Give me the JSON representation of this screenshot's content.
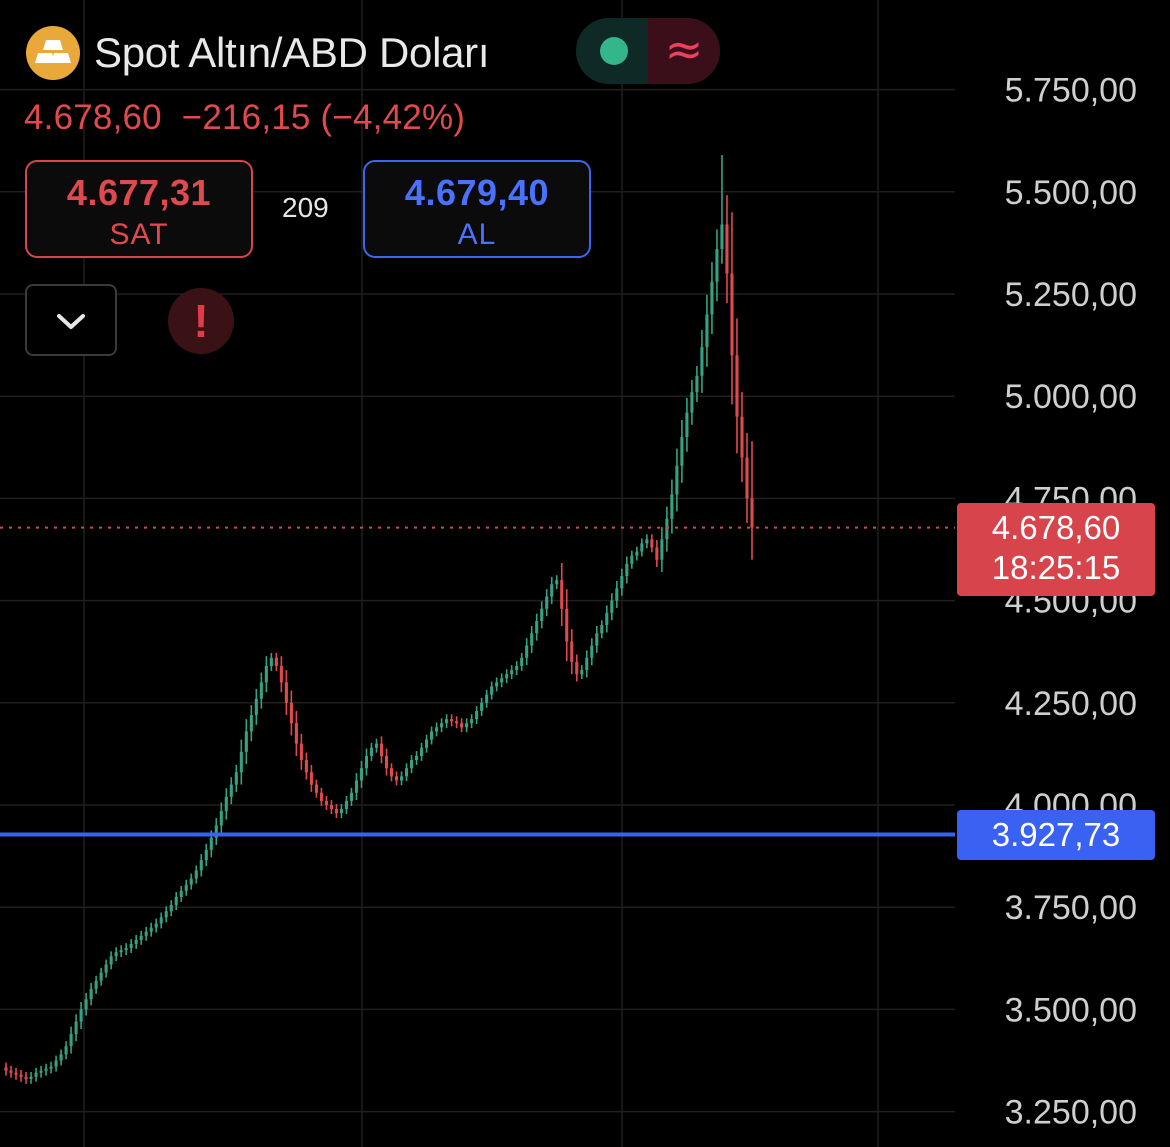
{
  "header": {
    "title": "Spot Altın/ABD Doları",
    "logo_icon": "gold-bars-icon",
    "toggle": {
      "left_icon": "dot-icon",
      "right_icon": "approx-icon",
      "right_glyph": "≈"
    }
  },
  "quote": {
    "last": "4.678,60",
    "change": "−216,15",
    "change_pct": "(−4,42%)"
  },
  "sell": {
    "price": "4.677,31",
    "label": "SAT"
  },
  "spread": "209",
  "buy": {
    "price": "4.679,40",
    "label": "AL"
  },
  "controls": {
    "dropdown_icon": "chevron-down-icon",
    "alert_icon": "exclamation-icon",
    "alert_glyph": "!"
  },
  "price_tag": {
    "value": "4.678,60",
    "countdown": "18:25:15"
  },
  "line_tag": {
    "value": "3.927,73"
  },
  "colors": {
    "up": "#34a383",
    "down": "#e04a4e",
    "line": "#3a62f2",
    "background": "#000000"
  },
  "chart_data": {
    "type": "candlestick",
    "title": "Spot Altın/ABD Doları",
    "y_ticks": [
      {
        "value": 5750,
        "label": "5.750,00"
      },
      {
        "value": 5500,
        "label": "5.500,00"
      },
      {
        "value": 5250,
        "label": "5.250,00"
      },
      {
        "value": 5000,
        "label": "5.000,00"
      },
      {
        "value": 4750,
        "label": "4.750,00"
      },
      {
        "value": 4500,
        "label": "4.500,00"
      },
      {
        "value": 4250,
        "label": "4.250,00"
      },
      {
        "value": 4000,
        "label": "4.000,00"
      },
      {
        "value": 3750,
        "label": "3.750,00"
      },
      {
        "value": 3500,
        "label": "3.500,00"
      },
      {
        "value": 3250,
        "label": "3.250,00"
      }
    ],
    "ylim": [
      3160,
      5880
    ],
    "current_price": 4678.6,
    "horizontal_line": 3927.73,
    "grid": true,
    "close_series": [
      3350,
      3345,
      3340,
      3335,
      3330,
      3335,
      3345,
      3350,
      3355,
      3360,
      3375,
      3390,
      3410,
      3440,
      3470,
      3500,
      3525,
      3550,
      3570,
      3590,
      3610,
      3630,
      3640,
      3645,
      3650,
      3660,
      3670,
      3680,
      3690,
      3700,
      3710,
      3725,
      3740,
      3755,
      3775,
      3790,
      3805,
      3820,
      3840,
      3865,
      3890,
      3920,
      3950,
      3985,
      4020,
      4050,
      4080,
      4130,
      4180,
      4220,
      4260,
      4300,
      4340,
      4360,
      4340,
      4300,
      4250,
      4200,
      4150,
      4110,
      4080,
      4050,
      4030,
      4010,
      4000,
      3990,
      3980,
      3990,
      4010,
      4030,
      4060,
      4090,
      4120,
      4140,
      4150,
      4120,
      4090,
      4070,
      4060,
      4070,
      4090,
      4110,
      4120,
      4140,
      4160,
      4180,
      4190,
      4200,
      4210,
      4205,
      4200,
      4190,
      4200,
      4210,
      4230,
      4250,
      4270,
      4290,
      4300,
      4310,
      4320,
      4330,
      4340,
      4360,
      4390,
      4420,
      4450,
      4480,
      4510,
      4540,
      4550,
      4480,
      4400,
      4350,
      4320,
      4330,
      4360,
      4390,
      4420,
      4440,
      4470,
      4500,
      4530,
      4560,
      4590,
      4610,
      4620,
      4640,
      4650,
      4630,
      4600,
      4650,
      4700,
      4760,
      4830,
      4900,
      4960,
      5010,
      5050,
      5120,
      5200,
      5280,
      5360,
      5420,
      5300,
      5100,
      4950,
      4850,
      4750,
      4678.6
    ]
  }
}
